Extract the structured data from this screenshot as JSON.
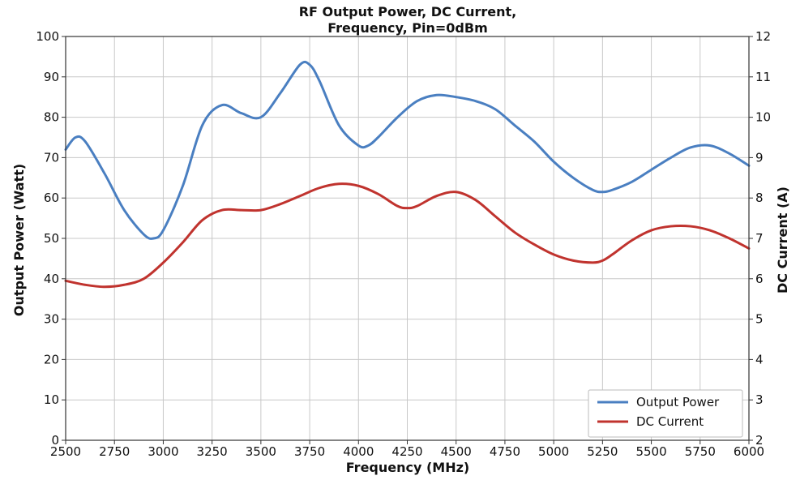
{
  "chart_data": {
    "type": "line",
    "title_lines": [
      "RF Output Power, DC Current,",
      "Frequency, Pin=0dBm"
    ],
    "xlabel": "Frequency (MHz)",
    "ylabel": "Output Power (Watt)",
    "y2label": "DC Current (A)",
    "xlim": [
      2500,
      6000
    ],
    "ylim": [
      0,
      100
    ],
    "y2lim": [
      2,
      12
    ],
    "x_ticks": [
      2500,
      2750,
      3000,
      3250,
      3500,
      3750,
      4000,
      4250,
      4500,
      4750,
      5000,
      5250,
      5500,
      5750,
      6000
    ],
    "y_ticks": [
      0,
      10,
      20,
      30,
      40,
      50,
      60,
      70,
      80,
      90,
      100
    ],
    "y2_ticks": [
      2,
      3,
      4,
      5,
      6,
      7,
      8,
      9,
      10,
      11,
      12
    ],
    "grid": true,
    "legend_position": "bottom-right",
    "series": [
      {
        "name": "Output Power",
        "axis": "left",
        "color": "#4a7fc1",
        "x": [
          2500,
          2550,
          2600,
          2700,
          2800,
          2900,
          2950,
          3000,
          3100,
          3200,
          3300,
          3400,
          3500,
          3600,
          3700,
          3750,
          3800,
          3900,
          4000,
          4050,
          4100,
          4200,
          4300,
          4400,
          4500,
          4600,
          4700,
          4800,
          4900,
          5000,
          5100,
          5200,
          5250,
          5300,
          5400,
          5500,
          5600,
          5700,
          5800,
          5900,
          6000
        ],
        "values": [
          72,
          75,
          74,
          66,
          57,
          51,
          50,
          52,
          63,
          78,
          83,
          81,
          80,
          86,
          93,
          93,
          89,
          78,
          73,
          73,
          75,
          80,
          84,
          85.5,
          85,
          84,
          82,
          78,
          74,
          69,
          65,
          62,
          61.5,
          62,
          64,
          67,
          70,
          72.5,
          73,
          71,
          68
        ]
      },
      {
        "name": "DC Current",
        "axis": "right",
        "color": "#c0332e",
        "x": [
          2500,
          2600,
          2700,
          2800,
          2900,
          3000,
          3100,
          3200,
          3300,
          3400,
          3500,
          3600,
          3700,
          3800,
          3900,
          4000,
          4100,
          4200,
          4250,
          4300,
          4400,
          4500,
          4600,
          4700,
          4800,
          4900,
          5000,
          5100,
          5200,
          5250,
          5300,
          5400,
          5500,
          5600,
          5700,
          5800,
          5900,
          6000
        ],
        "values": [
          5.95,
          5.85,
          5.8,
          5.85,
          6.0,
          6.4,
          6.9,
          7.45,
          7.7,
          7.7,
          7.7,
          7.85,
          8.05,
          8.25,
          8.35,
          8.3,
          8.1,
          7.8,
          7.75,
          7.8,
          8.05,
          8.15,
          7.95,
          7.55,
          7.15,
          6.85,
          6.6,
          6.45,
          6.4,
          6.45,
          6.6,
          6.95,
          7.2,
          7.3,
          7.3,
          7.2,
          7.0,
          6.75
        ]
      }
    ]
  }
}
